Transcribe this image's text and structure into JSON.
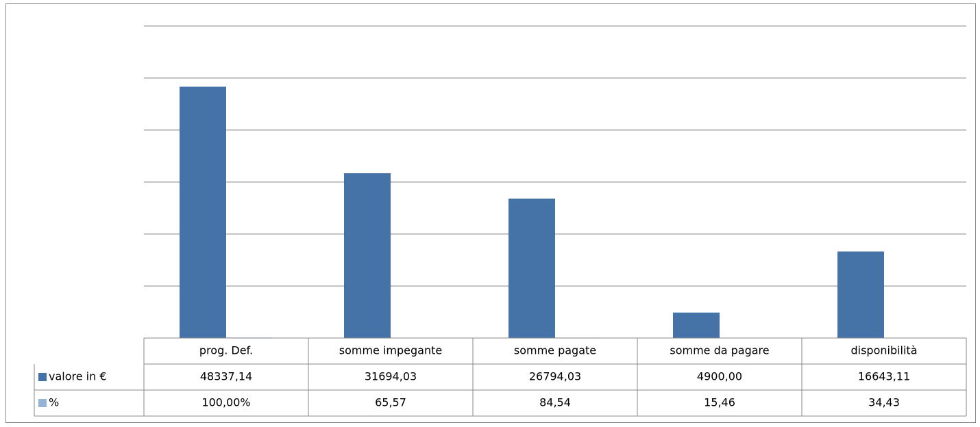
{
  "chart_data": {
    "type": "bar",
    "categories": [
      "prog. Def.",
      "somme impegante",
      "somme pagate",
      "somme da pagare",
      "disponibilità"
    ],
    "series": [
      {
        "name": "valore in €",
        "color": "#4573a7",
        "values": [
          48337.14,
          31694.03,
          26794.03,
          4900.0,
          16643.11
        ],
        "value_labels": [
          "48337,14",
          "31694,03",
          "26794,03",
          "4900,00",
          "16643,11"
        ]
      },
      {
        "name": "%",
        "color": "#95b3d7",
        "values": [
          100,
          65.57,
          84.54,
          15.46,
          34.43
        ],
        "value_labels": [
          "100,00%",
          "65,57",
          "84,54",
          "15,46",
          "34,43"
        ]
      }
    ],
    "ylim": [
      0,
      60000
    ],
    "yticks": [
      0,
      10000,
      20000,
      30000,
      40000,
      50000,
      60000
    ],
    "grid": true
  }
}
